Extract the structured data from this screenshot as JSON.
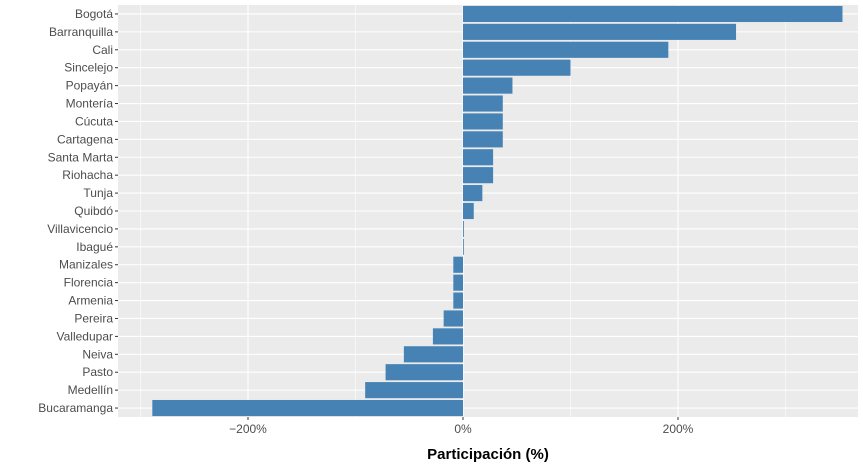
{
  "chart_data": {
    "type": "bar",
    "orientation": "horizontal",
    "title": "",
    "xlabel": "Participación (%)",
    "ylabel": "",
    "categories": [
      "Bogotá",
      "Barranquilla",
      "Cali",
      "Sincelejo",
      "Popayán",
      "Montería",
      "Cúcuta",
      "Cartagena",
      "Santa Marta",
      "Riohacha",
      "Tunja",
      "Quibdó",
      "Villavicencio",
      "Ibagué",
      "Manizales",
      "Florencia",
      "Armenia",
      "Pereira",
      "Valledupar",
      "Neiva",
      "Pasto",
      "Medellín",
      "Bucaramanga"
    ],
    "values": [
      353,
      254,
      191,
      100,
      46,
      37,
      37,
      37,
      28,
      28,
      18,
      10,
      0.8,
      0.5,
      -9,
      -9,
      -9,
      -18,
      -28,
      -55,
      -72,
      -91,
      -289
    ],
    "xlim": [
      -320,
      362
    ],
    "xticks": [
      -200,
      0,
      200
    ],
    "xtick_labels": [
      "−200%",
      "0%",
      "200%"
    ],
    "grid": true,
    "legend": "none",
    "colors": {
      "bar": "#4682b4",
      "panel": "#ebebeb",
      "grid_major": "#ffffff",
      "tick_text": "#4d4d4d"
    }
  }
}
